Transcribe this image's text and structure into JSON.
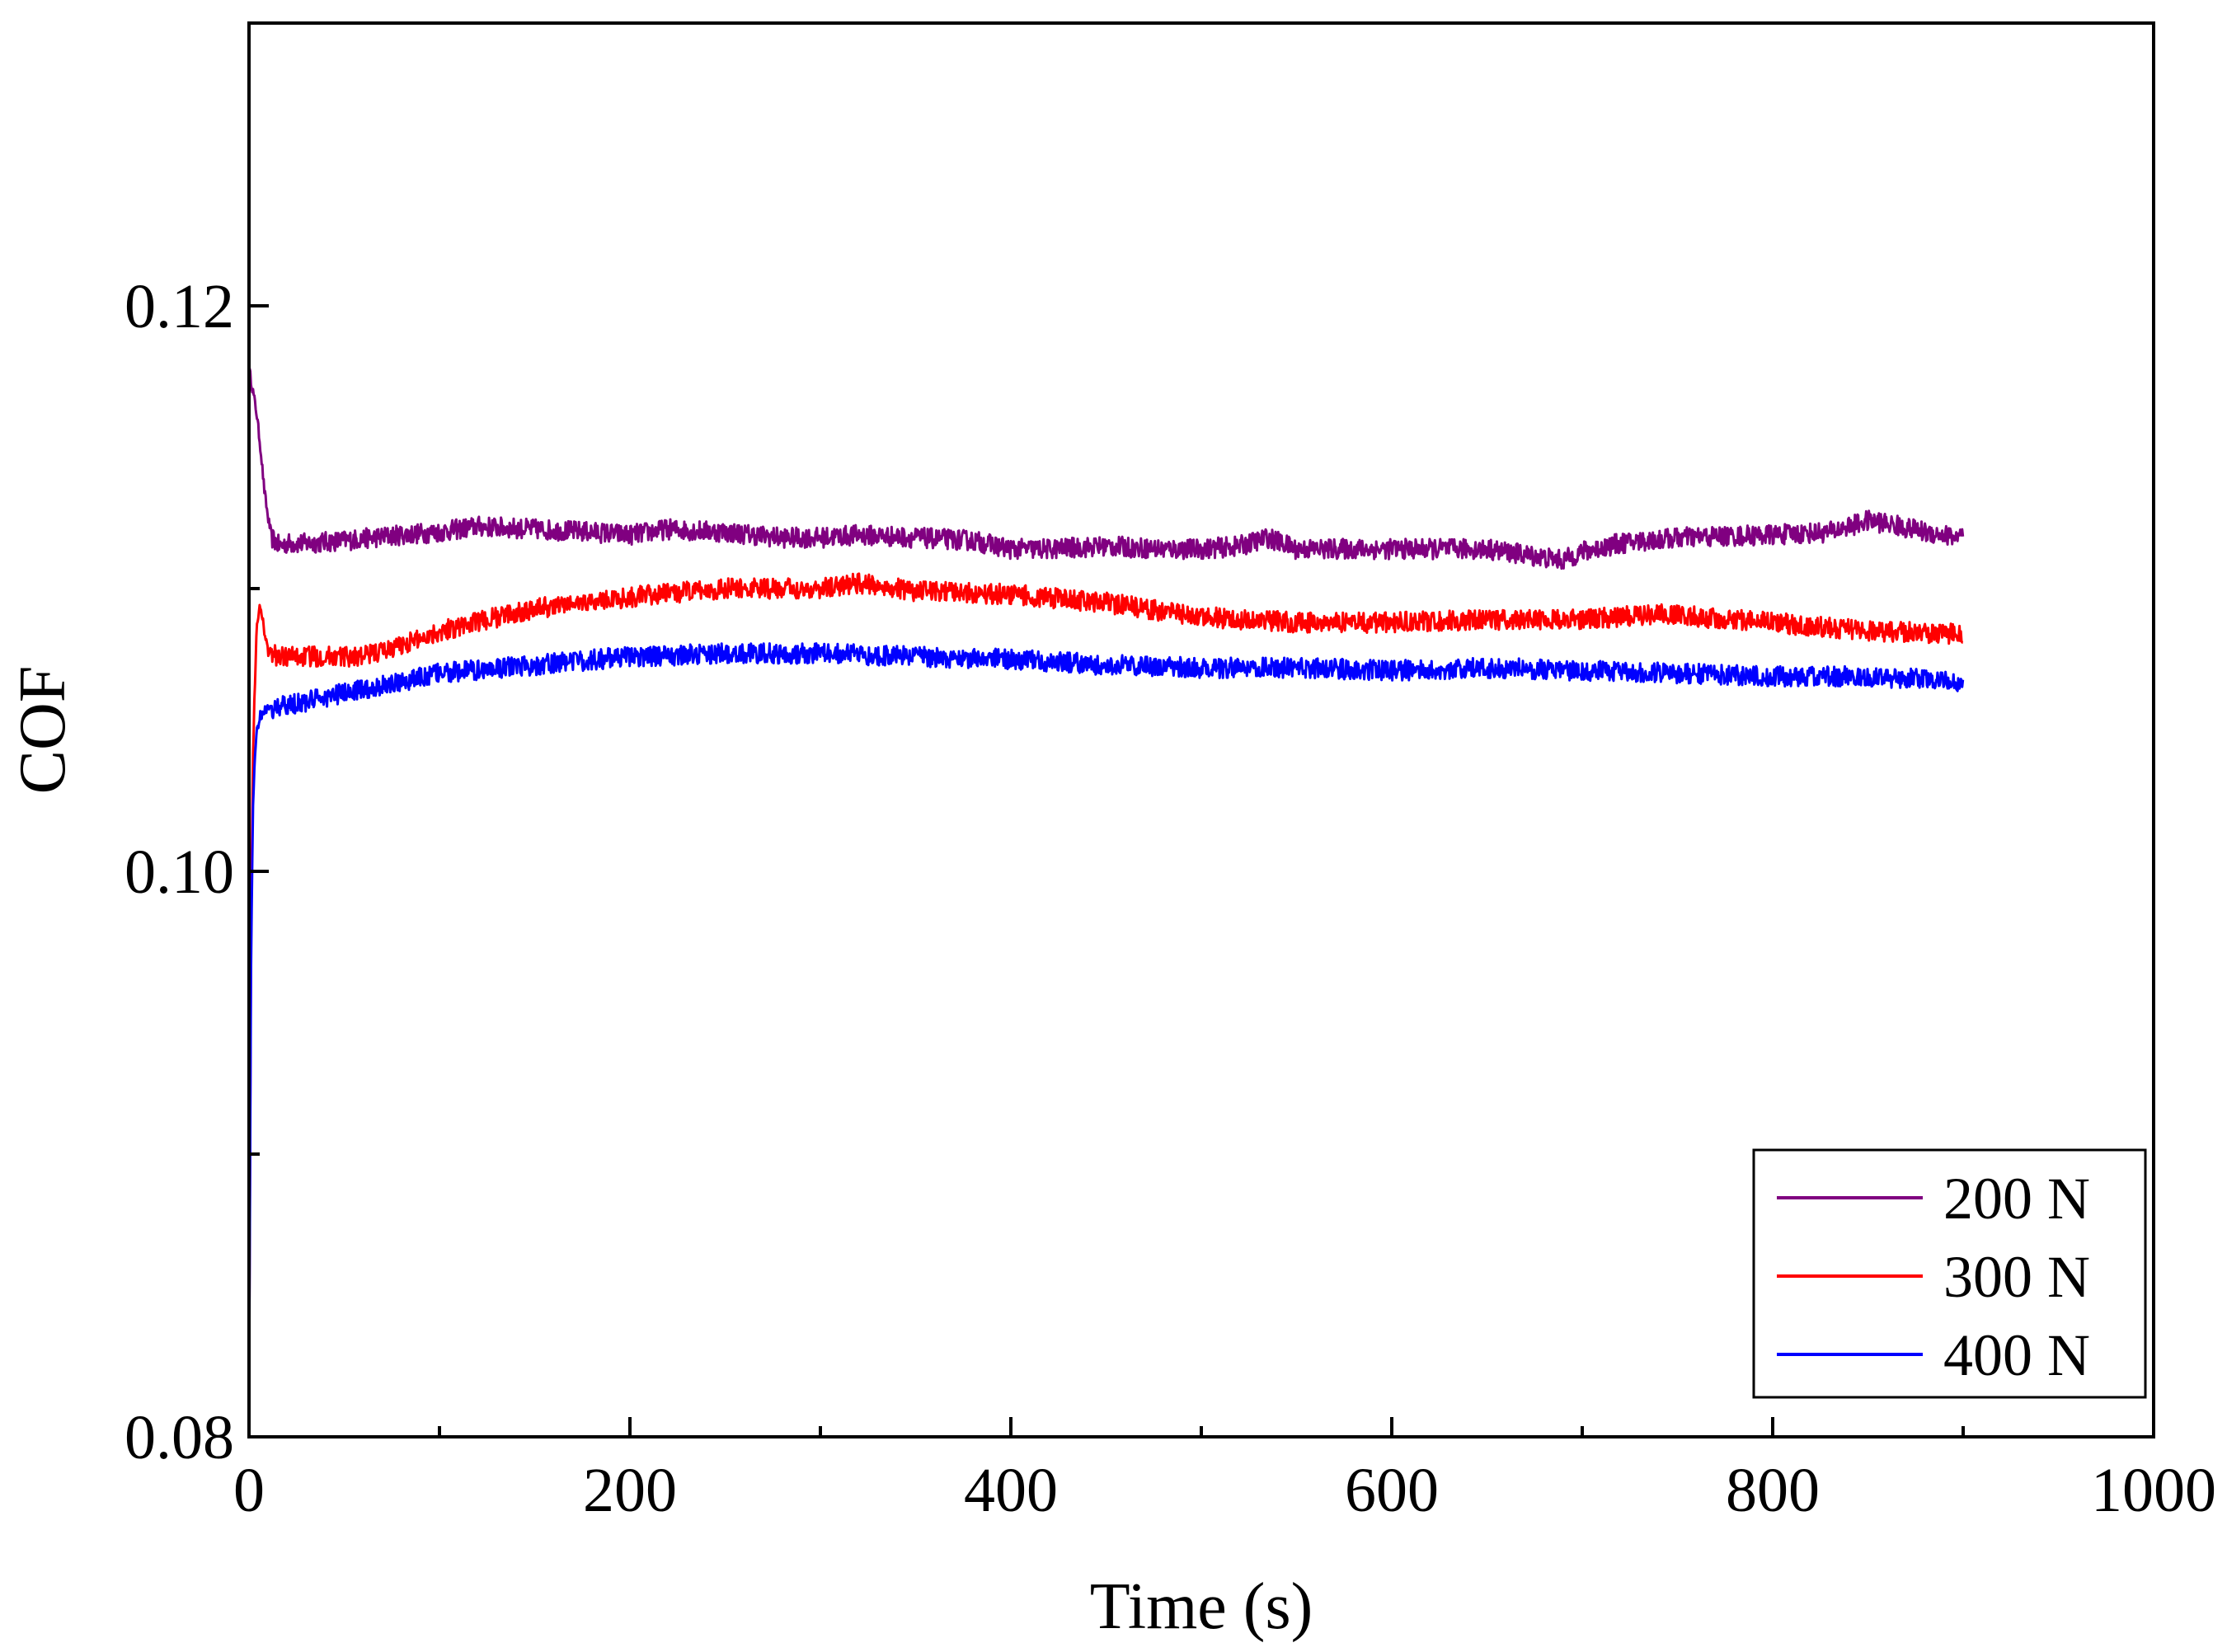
{
  "chart_data": {
    "type": "line",
    "title": "",
    "xlabel": "Time (s)",
    "ylabel": "COF",
    "xlim": [
      0,
      1000
    ],
    "ylim": [
      0.08,
      0.13
    ],
    "x_major_ticks": [
      0,
      200,
      400,
      600,
      800,
      1000
    ],
    "x_tick_labels": [
      "0",
      "200",
      "400",
      "600",
      "800",
      "1000"
    ],
    "x_minor_ticks": [
      100,
      300,
      500,
      700,
      900
    ],
    "y_major_ticks": [
      0.08,
      0.1,
      0.12
    ],
    "y_tick_labels": [
      "0.08",
      "0.10",
      "0.12"
    ],
    "y_minor_ticks": [
      0.09,
      0.11
    ],
    "grid": false,
    "legend_position": "bottom-right",
    "series": [
      {
        "name": "200 N",
        "color": "#800080",
        "x": [
          0,
          2,
          4,
          6,
          8,
          10,
          12,
          16,
          20,
          30,
          50,
          80,
          100,
          120,
          150,
          180,
          200,
          220,
          250,
          280,
          300,
          320,
          350,
          380,
          400,
          420,
          450,
          480,
          500,
          520,
          535,
          550,
          580,
          600,
          650,
          670,
          690,
          700,
          720,
          750,
          800,
          830,
          850,
          860,
          880,
          900
        ],
        "y": [
          0.1178,
          0.117,
          0.1162,
          0.115,
          0.1135,
          0.1125,
          0.1118,
          0.1115,
          0.1116,
          0.1116,
          0.1117,
          0.1119,
          0.112,
          0.1122,
          0.1121,
          0.112,
          0.1119,
          0.1121,
          0.112,
          0.1118,
          0.1118,
          0.1119,
          0.1118,
          0.1117,
          0.1114,
          0.1114,
          0.1115,
          0.1114,
          0.1114,
          0.1115,
          0.1118,
          0.1114,
          0.1114,
          0.1114,
          0.1114,
          0.1112,
          0.111,
          0.1113,
          0.1116,
          0.1118,
          0.1119,
          0.112,
          0.1124,
          0.1123,
          0.112,
          0.1118
        ]
      },
      {
        "name": "300 N",
        "color": "#ff0000",
        "x": [
          0,
          1,
          2,
          3,
          4,
          6,
          8,
          10,
          15,
          30,
          50,
          60,
          80,
          100,
          150,
          200,
          250,
          300,
          320,
          350,
          400,
          450,
          500,
          550,
          600,
          650,
          700,
          740,
          800,
          850,
          900
        ],
        "y": [
          0.0815,
          0.097,
          0.104,
          0.1065,
          0.1085,
          0.1095,
          0.1085,
          0.1078,
          0.1076,
          0.1076,
          0.1076,
          0.1076,
          0.108,
          0.1085,
          0.1093,
          0.1097,
          0.11,
          0.11,
          0.1102,
          0.1099,
          0.1098,
          0.1095,
          0.109,
          0.1088,
          0.1088,
          0.1089,
          0.1089,
          0.1091,
          0.1088,
          0.1085,
          0.1084
        ]
      },
      {
        "name": "400 N",
        "color": "#0000ff",
        "x": [
          0,
          1,
          2,
          3,
          4,
          6,
          8,
          10,
          15,
          30,
          50,
          80,
          100,
          150,
          200,
          250,
          300,
          350,
          400,
          450,
          500,
          550,
          600,
          650,
          700,
          750,
          800,
          850,
          900
        ],
        "y": [
          0.081,
          0.096,
          0.102,
          0.104,
          0.105,
          0.1055,
          0.1057,
          0.1057,
          0.1058,
          0.106,
          0.1063,
          0.1067,
          0.107,
          0.1073,
          0.1076,
          0.1077,
          0.1077,
          0.1076,
          0.1075,
          0.1073,
          0.1072,
          0.1072,
          0.1071,
          0.1072,
          0.1071,
          0.107,
          0.1069,
          0.1069,
          0.1067
        ]
      }
    ]
  }
}
